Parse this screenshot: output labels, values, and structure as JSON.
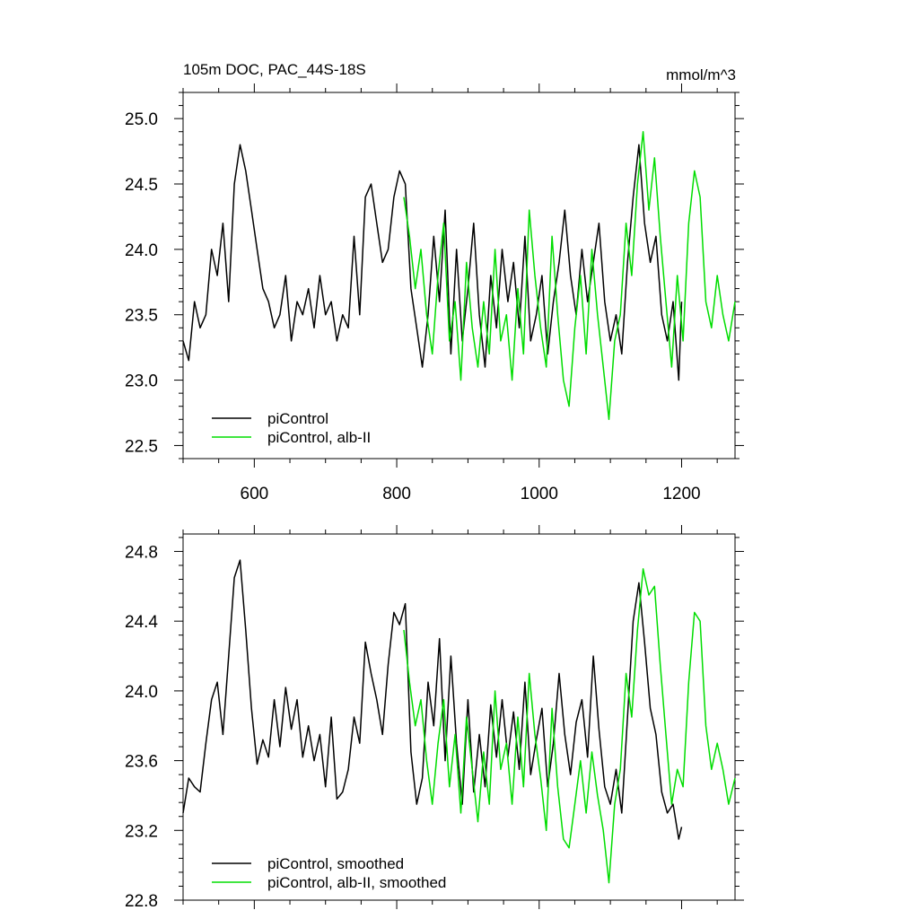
{
  "chart_data": [
    {
      "type": "line",
      "title": "105m DOC, PAC_44S-18S",
      "units": "mmol/m^3",
      "xlim": [
        500,
        1275
      ],
      "ylim": [
        22.4,
        25.2
      ],
      "x_ticks": [
        600,
        800,
        1000,
        1200
      ],
      "x_tick_labels": [
        "600",
        "800",
        "1000",
        "1200"
      ],
      "y_ticks": [
        22.5,
        23.0,
        23.5,
        24.0,
        24.5,
        25.0
      ],
      "y_tick_labels": [
        "22.5",
        "23.0",
        "23.5",
        "24.0",
        "24.5",
        "25.0"
      ],
      "legend_position": "bottom-left",
      "series": [
        {
          "name": "piControl",
          "color": "#000000",
          "x": [
            500,
            508,
            516,
            524,
            532,
            540,
            548,
            556,
            564,
            572,
            580,
            588,
            596,
            604,
            612,
            620,
            628,
            636,
            644,
            652,
            660,
            668,
            676,
            684,
            692,
            700,
            708,
            716,
            724,
            732,
            740,
            748,
            756,
            764,
            772,
            780,
            788,
            796,
            804,
            812,
            820,
            828,
            836,
            844,
            852,
            860,
            868,
            876,
            884,
            892,
            900,
            908,
            916,
            924,
            932,
            940,
            948,
            956,
            964,
            972,
            980,
            988,
            996,
            1004,
            1012,
            1020,
            1028,
            1036,
            1044,
            1052,
            1060,
            1068,
            1076,
            1084,
            1092,
            1100,
            1108,
            1116,
            1124,
            1132,
            1140,
            1148,
            1156,
            1164,
            1172,
            1180,
            1188,
            1196,
            1200
          ],
          "values": [
            23.3,
            23.15,
            23.6,
            23.4,
            23.5,
            24.0,
            23.8,
            24.2,
            23.6,
            24.5,
            24.8,
            24.6,
            24.3,
            24.0,
            23.7,
            23.6,
            23.4,
            23.5,
            23.8,
            23.3,
            23.6,
            23.5,
            23.7,
            23.4,
            23.8,
            23.5,
            23.6,
            23.3,
            23.5,
            23.4,
            24.1,
            23.5,
            24.4,
            24.5,
            24.2,
            23.9,
            24.0,
            24.4,
            24.6,
            24.5,
            23.7,
            23.4,
            23.1,
            23.5,
            24.1,
            23.6,
            24.3,
            23.2,
            24.0,
            23.3,
            23.7,
            24.2,
            23.5,
            23.1,
            23.8,
            23.4,
            24.0,
            23.6,
            23.9,
            23.4,
            24.1,
            23.3,
            23.5,
            23.8,
            23.2,
            23.6,
            23.9,
            24.3,
            23.8,
            23.5,
            24.0,
            23.6,
            23.9,
            24.2,
            23.6,
            23.3,
            23.5,
            23.2,
            23.9,
            24.4,
            24.8,
            24.2,
            23.9,
            24.1,
            23.5,
            23.3,
            23.6,
            23.0,
            23.6
          ]
        },
        {
          "name": "piControl, alb-II",
          "color": "#00dd00",
          "x": [
            810,
            818,
            826,
            834,
            842,
            850,
            858,
            866,
            874,
            882,
            890,
            898,
            906,
            914,
            922,
            930,
            938,
            946,
            954,
            962,
            970,
            978,
            986,
            994,
            1002,
            1010,
            1018,
            1026,
            1034,
            1042,
            1050,
            1058,
            1066,
            1074,
            1082,
            1090,
            1098,
            1106,
            1114,
            1122,
            1130,
            1138,
            1146,
            1154,
            1162,
            1170,
            1178,
            1186,
            1194,
            1202,
            1210,
            1218,
            1226,
            1234,
            1242,
            1250,
            1258,
            1266,
            1275
          ],
          "values": [
            24.4,
            24.1,
            23.7,
            24.0,
            23.5,
            23.2,
            23.8,
            24.2,
            23.3,
            23.6,
            23.0,
            23.9,
            23.4,
            23.1,
            23.6,
            23.2,
            24.0,
            23.3,
            23.5,
            23.0,
            23.7,
            23.2,
            24.3,
            23.8,
            23.4,
            23.1,
            24.1,
            23.5,
            23.0,
            22.8,
            23.4,
            23.8,
            23.2,
            24.0,
            23.5,
            23.1,
            22.7,
            23.3,
            23.5,
            24.2,
            23.8,
            24.5,
            24.9,
            24.3,
            24.7,
            24.1,
            23.6,
            23.1,
            23.8,
            23.3,
            24.2,
            24.6,
            24.4,
            23.6,
            23.4,
            23.8,
            23.5,
            23.3,
            23.6
          ]
        }
      ]
    },
    {
      "type": "line",
      "xlim": [
        500,
        1275
      ],
      "ylim": [
        22.8,
        24.9
      ],
      "x_ticks": [
        600,
        800,
        1000,
        1200
      ],
      "y_ticks": [
        22.8,
        23.2,
        23.6,
        24.0,
        24.4,
        24.8
      ],
      "y_tick_labels": [
        "22.8",
        "23.2",
        "23.6",
        "24.0",
        "24.4",
        "24.8"
      ],
      "legend_position": "bottom-left",
      "series": [
        {
          "name": "piControl, smoothed",
          "color": "#000000",
          "x": [
            500,
            508,
            516,
            524,
            532,
            540,
            548,
            556,
            564,
            572,
            580,
            588,
            596,
            604,
            612,
            620,
            628,
            636,
            644,
            652,
            660,
            668,
            676,
            684,
            692,
            700,
            708,
            716,
            724,
            732,
            740,
            748,
            756,
            764,
            772,
            780,
            788,
            796,
            804,
            812,
            820,
            828,
            836,
            844,
            852,
            860,
            868,
            876,
            884,
            892,
            900,
            908,
            916,
            924,
            932,
            940,
            948,
            956,
            964,
            972,
            980,
            988,
            996,
            1004,
            1012,
            1020,
            1028,
            1036,
            1044,
            1052,
            1060,
            1068,
            1076,
            1084,
            1092,
            1100,
            1108,
            1116,
            1124,
            1132,
            1140,
            1148,
            1156,
            1164,
            1172,
            1180,
            1188,
            1196,
            1200
          ],
          "values": [
            23.3,
            23.5,
            23.45,
            23.42,
            23.7,
            23.95,
            24.05,
            23.75,
            24.2,
            24.65,
            24.75,
            24.35,
            23.9,
            23.58,
            23.72,
            23.62,
            23.95,
            23.68,
            24.02,
            23.78,
            23.95,
            23.62,
            23.8,
            23.6,
            23.75,
            23.45,
            23.85,
            23.38,
            23.42,
            23.55,
            23.85,
            23.7,
            24.28,
            24.1,
            23.95,
            23.75,
            24.15,
            24.45,
            24.38,
            24.5,
            23.65,
            23.35,
            23.5,
            24.05,
            23.8,
            24.3,
            23.6,
            24.2,
            23.7,
            23.35,
            23.95,
            23.42,
            23.75,
            23.45,
            23.92,
            23.62,
            23.95,
            23.62,
            23.88,
            23.55,
            24.05,
            23.52,
            23.72,
            23.9,
            23.45,
            23.7,
            24.1,
            23.75,
            23.52,
            23.82,
            23.95,
            23.62,
            24.2,
            23.78,
            23.45,
            23.35,
            23.55,
            23.3,
            23.85,
            24.4,
            24.62,
            24.28,
            23.9,
            23.75,
            23.42,
            23.3,
            23.35,
            23.15,
            23.22
          ]
        },
        {
          "name": "piControl, alb-II, smoothed",
          "color": "#00dd00",
          "x": [
            810,
            818,
            826,
            834,
            842,
            850,
            858,
            866,
            874,
            882,
            890,
            898,
            906,
            914,
            922,
            930,
            938,
            946,
            954,
            962,
            970,
            978,
            986,
            994,
            1002,
            1010,
            1018,
            1026,
            1034,
            1042,
            1050,
            1058,
            1066,
            1074,
            1082,
            1090,
            1098,
            1106,
            1114,
            1122,
            1130,
            1138,
            1146,
            1154,
            1162,
            1170,
            1178,
            1186,
            1194,
            1202,
            1210,
            1218,
            1226,
            1234,
            1242,
            1250,
            1258,
            1266,
            1275
          ],
          "values": [
            24.35,
            24.05,
            23.8,
            23.95,
            23.6,
            23.35,
            23.7,
            23.95,
            23.45,
            23.75,
            23.3,
            23.85,
            23.55,
            23.25,
            23.65,
            23.35,
            24.0,
            23.55,
            23.7,
            23.35,
            23.85,
            23.45,
            24.1,
            23.75,
            23.5,
            23.2,
            23.9,
            23.45,
            23.15,
            23.1,
            23.35,
            23.6,
            23.3,
            23.65,
            23.4,
            23.2,
            22.9,
            23.35,
            23.55,
            24.1,
            23.85,
            24.35,
            24.7,
            24.55,
            24.6,
            24.15,
            23.75,
            23.35,
            23.55,
            23.45,
            24.05,
            24.45,
            24.4,
            23.8,
            23.55,
            23.7,
            23.55,
            23.35,
            23.5
          ]
        }
      ]
    }
  ]
}
